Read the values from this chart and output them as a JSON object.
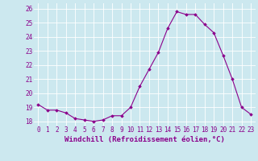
{
  "x": [
    0,
    1,
    2,
    3,
    4,
    5,
    6,
    7,
    8,
    9,
    10,
    11,
    12,
    13,
    14,
    15,
    16,
    17,
    18,
    19,
    20,
    21,
    22,
    23
  ],
  "y": [
    19.2,
    18.8,
    18.8,
    18.6,
    18.2,
    18.1,
    18.0,
    18.1,
    18.4,
    18.4,
    19.0,
    20.5,
    21.7,
    22.9,
    24.6,
    25.8,
    25.6,
    25.6,
    24.9,
    24.3,
    22.7,
    21.0,
    19.0,
    18.5
  ],
  "line_color": "#8B008B",
  "marker": "D",
  "marker_size": 1.8,
  "bg_color": "#cce8ef",
  "grid_color": "#ffffff",
  "xlabel": "Windchill (Refroidissement éolien,°C)",
  "xlabel_color": "#8B008B",
  "ylabel_ticks": [
    18,
    19,
    20,
    21,
    22,
    23,
    24,
    25,
    26
  ],
  "xtick_labels": [
    "0",
    "1",
    "2",
    "3",
    "4",
    "5",
    "6",
    "7",
    "8",
    "9",
    "10",
    "11",
    "12",
    "13",
    "14",
    "15",
    "16",
    "17",
    "18",
    "19",
    "20",
    "21",
    "22",
    "23"
  ],
  "ylim": [
    17.7,
    26.4
  ],
  "xlim": [
    -0.5,
    23.5
  ],
  "tick_color": "#8B008B",
  "tick_fontsize": 5.5,
  "xlabel_fontsize": 6.5,
  "linewidth": 0.8
}
